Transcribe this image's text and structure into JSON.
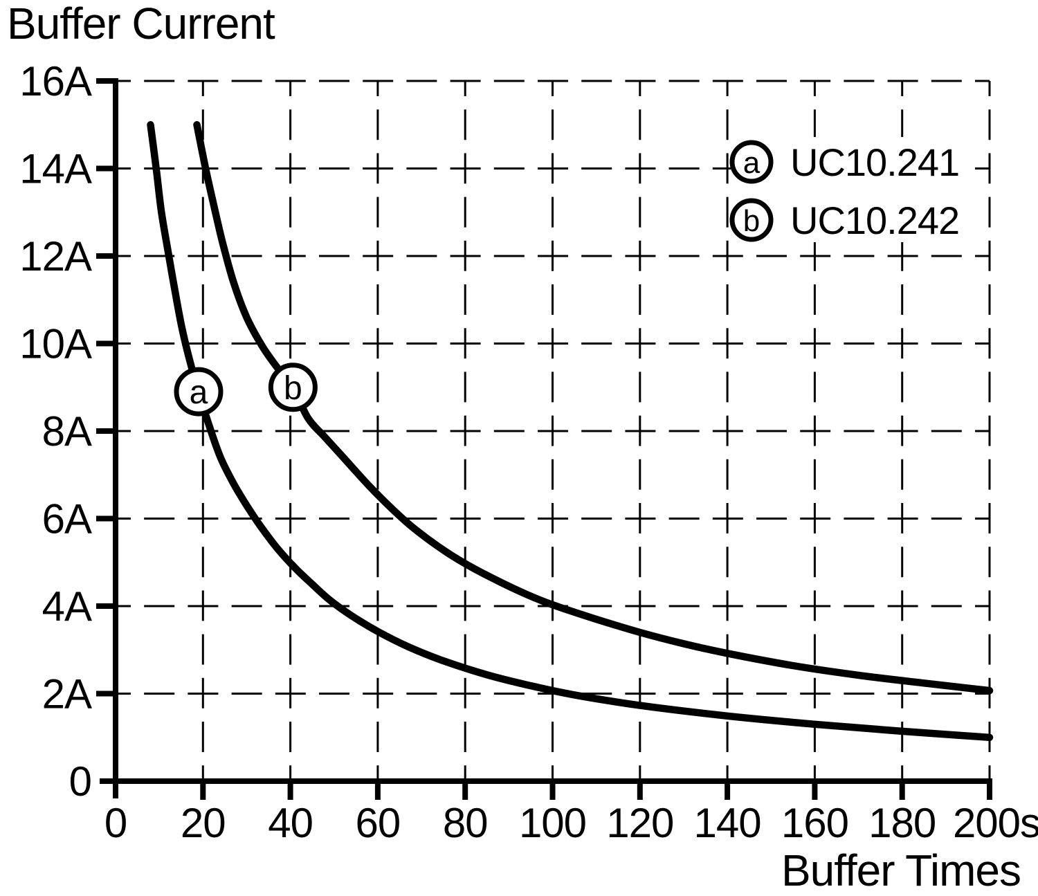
{
  "title": "Buffer Current",
  "x_axis_title": "Buffer Times",
  "colors": {
    "ink": "#000000",
    "background": "#ffffff"
  },
  "legend": {
    "position": "top-right",
    "items": [
      {
        "letter": "a",
        "label": "UC10.241"
      },
      {
        "letter": "b",
        "label": "UC10.242"
      }
    ]
  },
  "chart_data": {
    "type": "line",
    "title": "Buffer Current",
    "xlabel": "Buffer Times",
    "ylabel": "Buffer Current",
    "x_unit": "s",
    "y_unit": "A",
    "xlim": [
      0,
      200
    ],
    "ylim": [
      0,
      16
    ],
    "grid": {
      "style": "dashed",
      "x_step": 20,
      "y_step": 2
    },
    "x_ticks": [
      {
        "value": 0,
        "label": "0"
      },
      {
        "value": 20,
        "label": "20"
      },
      {
        "value": 40,
        "label": "40"
      },
      {
        "value": 60,
        "label": "60"
      },
      {
        "value": 80,
        "label": "80"
      },
      {
        "value": 100,
        "label": "100"
      },
      {
        "value": 120,
        "label": "120"
      },
      {
        "value": 140,
        "label": "140"
      },
      {
        "value": 160,
        "label": "160"
      },
      {
        "value": 180,
        "label": "180"
      },
      {
        "value": 200,
        "label": "200s"
      }
    ],
    "y_ticks": [
      {
        "value": 0,
        "label": "0"
      },
      {
        "value": 2,
        "label": "2A"
      },
      {
        "value": 4,
        "label": "4A"
      },
      {
        "value": 6,
        "label": "6A"
      },
      {
        "value": 8,
        "label": "8A"
      },
      {
        "value": 10,
        "label": "10A"
      },
      {
        "value": 12,
        "label": "12A"
      },
      {
        "value": 14,
        "label": "14A"
      },
      {
        "value": 16,
        "label": "16A"
      }
    ],
    "series": [
      {
        "name": "UC10.241",
        "marker_letter": "a",
        "marker_position": [
          19,
          8.9
        ],
        "points": [
          [
            8,
            15
          ],
          [
            9.3,
            14
          ],
          [
            10.5,
            13
          ],
          [
            12.2,
            12
          ],
          [
            13.6,
            11.2
          ],
          [
            15.2,
            10.35
          ],
          [
            17,
            9.6
          ],
          [
            19,
            8.9
          ],
          [
            21.5,
            8.1
          ],
          [
            24,
            7.4
          ],
          [
            27,
            6.8
          ],
          [
            30,
            6.3
          ],
          [
            33,
            5.85
          ],
          [
            37,
            5.32
          ],
          [
            41,
            4.88
          ],
          [
            45,
            4.5
          ],
          [
            49,
            4.14
          ],
          [
            54,
            3.78
          ],
          [
            60,
            3.42
          ],
          [
            67,
            3.07
          ],
          [
            75,
            2.75
          ],
          [
            85,
            2.43
          ],
          [
            95,
            2.18
          ],
          [
            105,
            1.97
          ],
          [
            120,
            1.73
          ],
          [
            140,
            1.49
          ],
          [
            160,
            1.3
          ],
          [
            180,
            1.14
          ],
          [
            200,
            1.0
          ]
        ]
      },
      {
        "name": "UC10.242",
        "marker_letter": "b",
        "marker_position": [
          40.6,
          9.0
        ],
        "points": [
          [
            18.6,
            15
          ],
          [
            20.6,
            14
          ],
          [
            22.5,
            13.15
          ],
          [
            24.5,
            12.3
          ],
          [
            27,
            11.4
          ],
          [
            30,
            10.6
          ],
          [
            33.5,
            9.95
          ],
          [
            37,
            9.45
          ],
          [
            40.6,
            9.0
          ],
          [
            44,
            8.3
          ],
          [
            48,
            7.85
          ],
          [
            53,
            7.3
          ],
          [
            58,
            6.75
          ],
          [
            63,
            6.25
          ],
          [
            68,
            5.8
          ],
          [
            74,
            5.35
          ],
          [
            80,
            4.97
          ],
          [
            87,
            4.6
          ],
          [
            94,
            4.27
          ],
          [
            100,
            4.03
          ],
          [
            110,
            3.7
          ],
          [
            120,
            3.4
          ],
          [
            130,
            3.14
          ],
          [
            140,
            2.92
          ],
          [
            155,
            2.64
          ],
          [
            170,
            2.42
          ],
          [
            185,
            2.24
          ],
          [
            200,
            2.07
          ]
        ]
      }
    ]
  }
}
